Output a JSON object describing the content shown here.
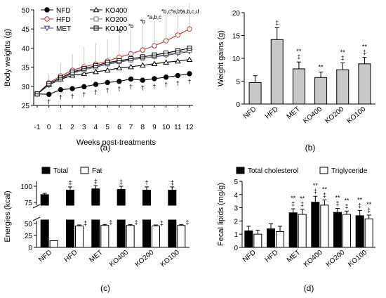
{
  "chart_data": [
    {
      "type": "line",
      "panel_label": "(a)",
      "xlabel": "Weeks post-treatments",
      "ylabel": "Body weights (g)",
      "x": [
        -1,
        0,
        1,
        2,
        3,
        4,
        5,
        6,
        7,
        8,
        9,
        10,
        11,
        12
      ],
      "ylim": [
        25,
        50
      ],
      "yticks": [
        25,
        30,
        35,
        40,
        45,
        50
      ],
      "grid": false,
      "legend_position": "top-left",
      "series": [
        {
          "name": "NFD",
          "marker": "filled-circle",
          "color": "#000000",
          "values": [
            28.0,
            27.9,
            29.1,
            29.4,
            29.9,
            30.5,
            31.0,
            31.3,
            31.9,
            31.6,
            32.0,
            32.4,
            32.8,
            33.3
          ]
        },
        {
          "name": "HFD",
          "marker": "open-circle",
          "color": "#c0392b",
          "values": [
            28.0,
            30.9,
            32.7,
            34.2,
            35.1,
            35.8,
            36.6,
            37.6,
            38.5,
            39.5,
            40.6,
            41.9,
            43.4,
            45.0
          ]
        },
        {
          "name": "MET",
          "marker": "open-triangle-down",
          "color": "#3a3a8c",
          "values": [
            28.0,
            30.3,
            31.9,
            33.5,
            34.4,
            35.0,
            35.8,
            36.3,
            36.9,
            37.4,
            37.7,
            38.1,
            38.6,
            39.1
          ]
        },
        {
          "name": "KO400",
          "marker": "open-triangle-up",
          "color": "#000000",
          "values": [
            28.0,
            30.4,
            31.8,
            32.9,
            33.3,
            33.8,
            34.2,
            34.8,
            35.1,
            35.5,
            35.9,
            36.3,
            36.6,
            37.0
          ]
        },
        {
          "name": "KO200",
          "marker": "open-square",
          "color": "#777777",
          "values": [
            28.0,
            30.5,
            31.9,
            33.4,
            34.3,
            35.1,
            35.9,
            36.5,
            36.9,
            37.4,
            37.8,
            38.3,
            38.9,
            39.4
          ]
        },
        {
          "name": "KO100",
          "marker": "open-square-dot",
          "color": "#000000",
          "values": [
            28.0,
            30.7,
            32.2,
            33.7,
            34.6,
            35.4,
            36.2,
            36.7,
            37.2,
            37.7,
            38.2,
            38.7,
            39.3,
            40.0
          ]
        }
      ],
      "errors_up": [
        0.6,
        2.1,
        3.4,
        4.2,
        5.3,
        5.5,
        5.6,
        5.9,
        6.2,
        6.4,
        6.5,
        6.6,
        6.7,
        6.8
      ],
      "annotations": [
        {
          "x": 6,
          "text": "*b"
        },
        {
          "x": 7,
          "text": "*b"
        },
        {
          "x": 8,
          "text": "*b"
        },
        {
          "x": 9,
          "text": "*a,b,c"
        },
        {
          "x": 10,
          "text": "*b,c"
        },
        {
          "x": 11,
          "text": "*a,b,c"
        },
        {
          "x": 12,
          "text": "*a,b,c,d"
        }
      ],
      "dagger_x": [
        0,
        1,
        2,
        3,
        4,
        5,
        6,
        7,
        8,
        9,
        10,
        11,
        12
      ]
    },
    {
      "type": "bar",
      "panel_label": "(b)",
      "ylabel": "Weight gains (g)",
      "categories": [
        "NFD",
        "HFD",
        "MET",
        "KO400",
        "KO200",
        "KO100"
      ],
      "values": [
        4.7,
        14.1,
        7.7,
        5.8,
        7.5,
        8.8
      ],
      "errors": [
        1.5,
        2.6,
        1.5,
        1.2,
        1.5,
        1.4
      ],
      "significance": [
        "",
        "‡",
        "**\n‡",
        "**",
        "**\n‡",
        "**\n‡"
      ],
      "ylim": [
        0,
        20
      ],
      "yticks": [
        0,
        5,
        10,
        15,
        20
      ],
      "bar_color": "#c8c8c8"
    },
    {
      "type": "bar",
      "panel_label": "(c)",
      "ylabel": "Energies (kcal)",
      "categories": [
        "NFD",
        "HFD",
        "MET",
        "KO400",
        "KO200",
        "KO100"
      ],
      "series": [
        {
          "name": "Total",
          "color": "#000000",
          "values": [
            87,
            94,
            96,
            95,
            94,
            94
          ],
          "errors": [
            2,
            5,
            5,
            5,
            5,
            5
          ]
        },
        {
          "name": "Fat",
          "color": "#ffffff",
          "values": [
            14,
            45,
            46,
            46,
            45,
            46
          ],
          "errors": [
            0,
            2,
            2,
            2,
            2,
            2
          ]
        }
      ],
      "yticks_upper": [
        75,
        100
      ],
      "yticks_lower": [
        0,
        25,
        50
      ],
      "axis_break": true,
      "significance_total": [
        "",
        "‡",
        "‡",
        "‡",
        "†",
        "‡"
      ],
      "significance_fat": [
        "",
        "‡",
        "‡",
        "‡",
        "‡",
        "‡"
      ]
    },
    {
      "type": "bar",
      "panel_label": "(d)",
      "ylabel": "Fecal lipids (mg/g)",
      "categories": [
        "NFD",
        "HFD",
        "MET",
        "KO400",
        "KO200",
        "KO100"
      ],
      "series": [
        {
          "name": "Total cholesterol",
          "color": "#000000",
          "values": [
            1.25,
            1.4,
            2.62,
            3.42,
            2.65,
            2.4
          ],
          "errors": [
            0.35,
            0.4,
            0.3,
            0.45,
            0.3,
            0.4
          ]
        },
        {
          "name": "Triglyceride",
          "color": "#ffffff",
          "values": [
            1.0,
            1.2,
            2.5,
            3.2,
            2.5,
            2.15
          ],
          "errors": [
            0.3,
            0.4,
            0.4,
            0.4,
            0.25,
            0.3
          ]
        }
      ],
      "ylim": [
        0,
        5
      ],
      "yticks": [
        0,
        1,
        2,
        3,
        4,
        5
      ],
      "significance_tc": [
        "",
        "",
        "**\n‡",
        "**\n‡",
        "**\n‡",
        "**\n‡"
      ],
      "significance_tg": [
        "",
        "",
        "**\n‡",
        "**\n‡",
        "**\n‡",
        "**\n‡"
      ]
    }
  ]
}
